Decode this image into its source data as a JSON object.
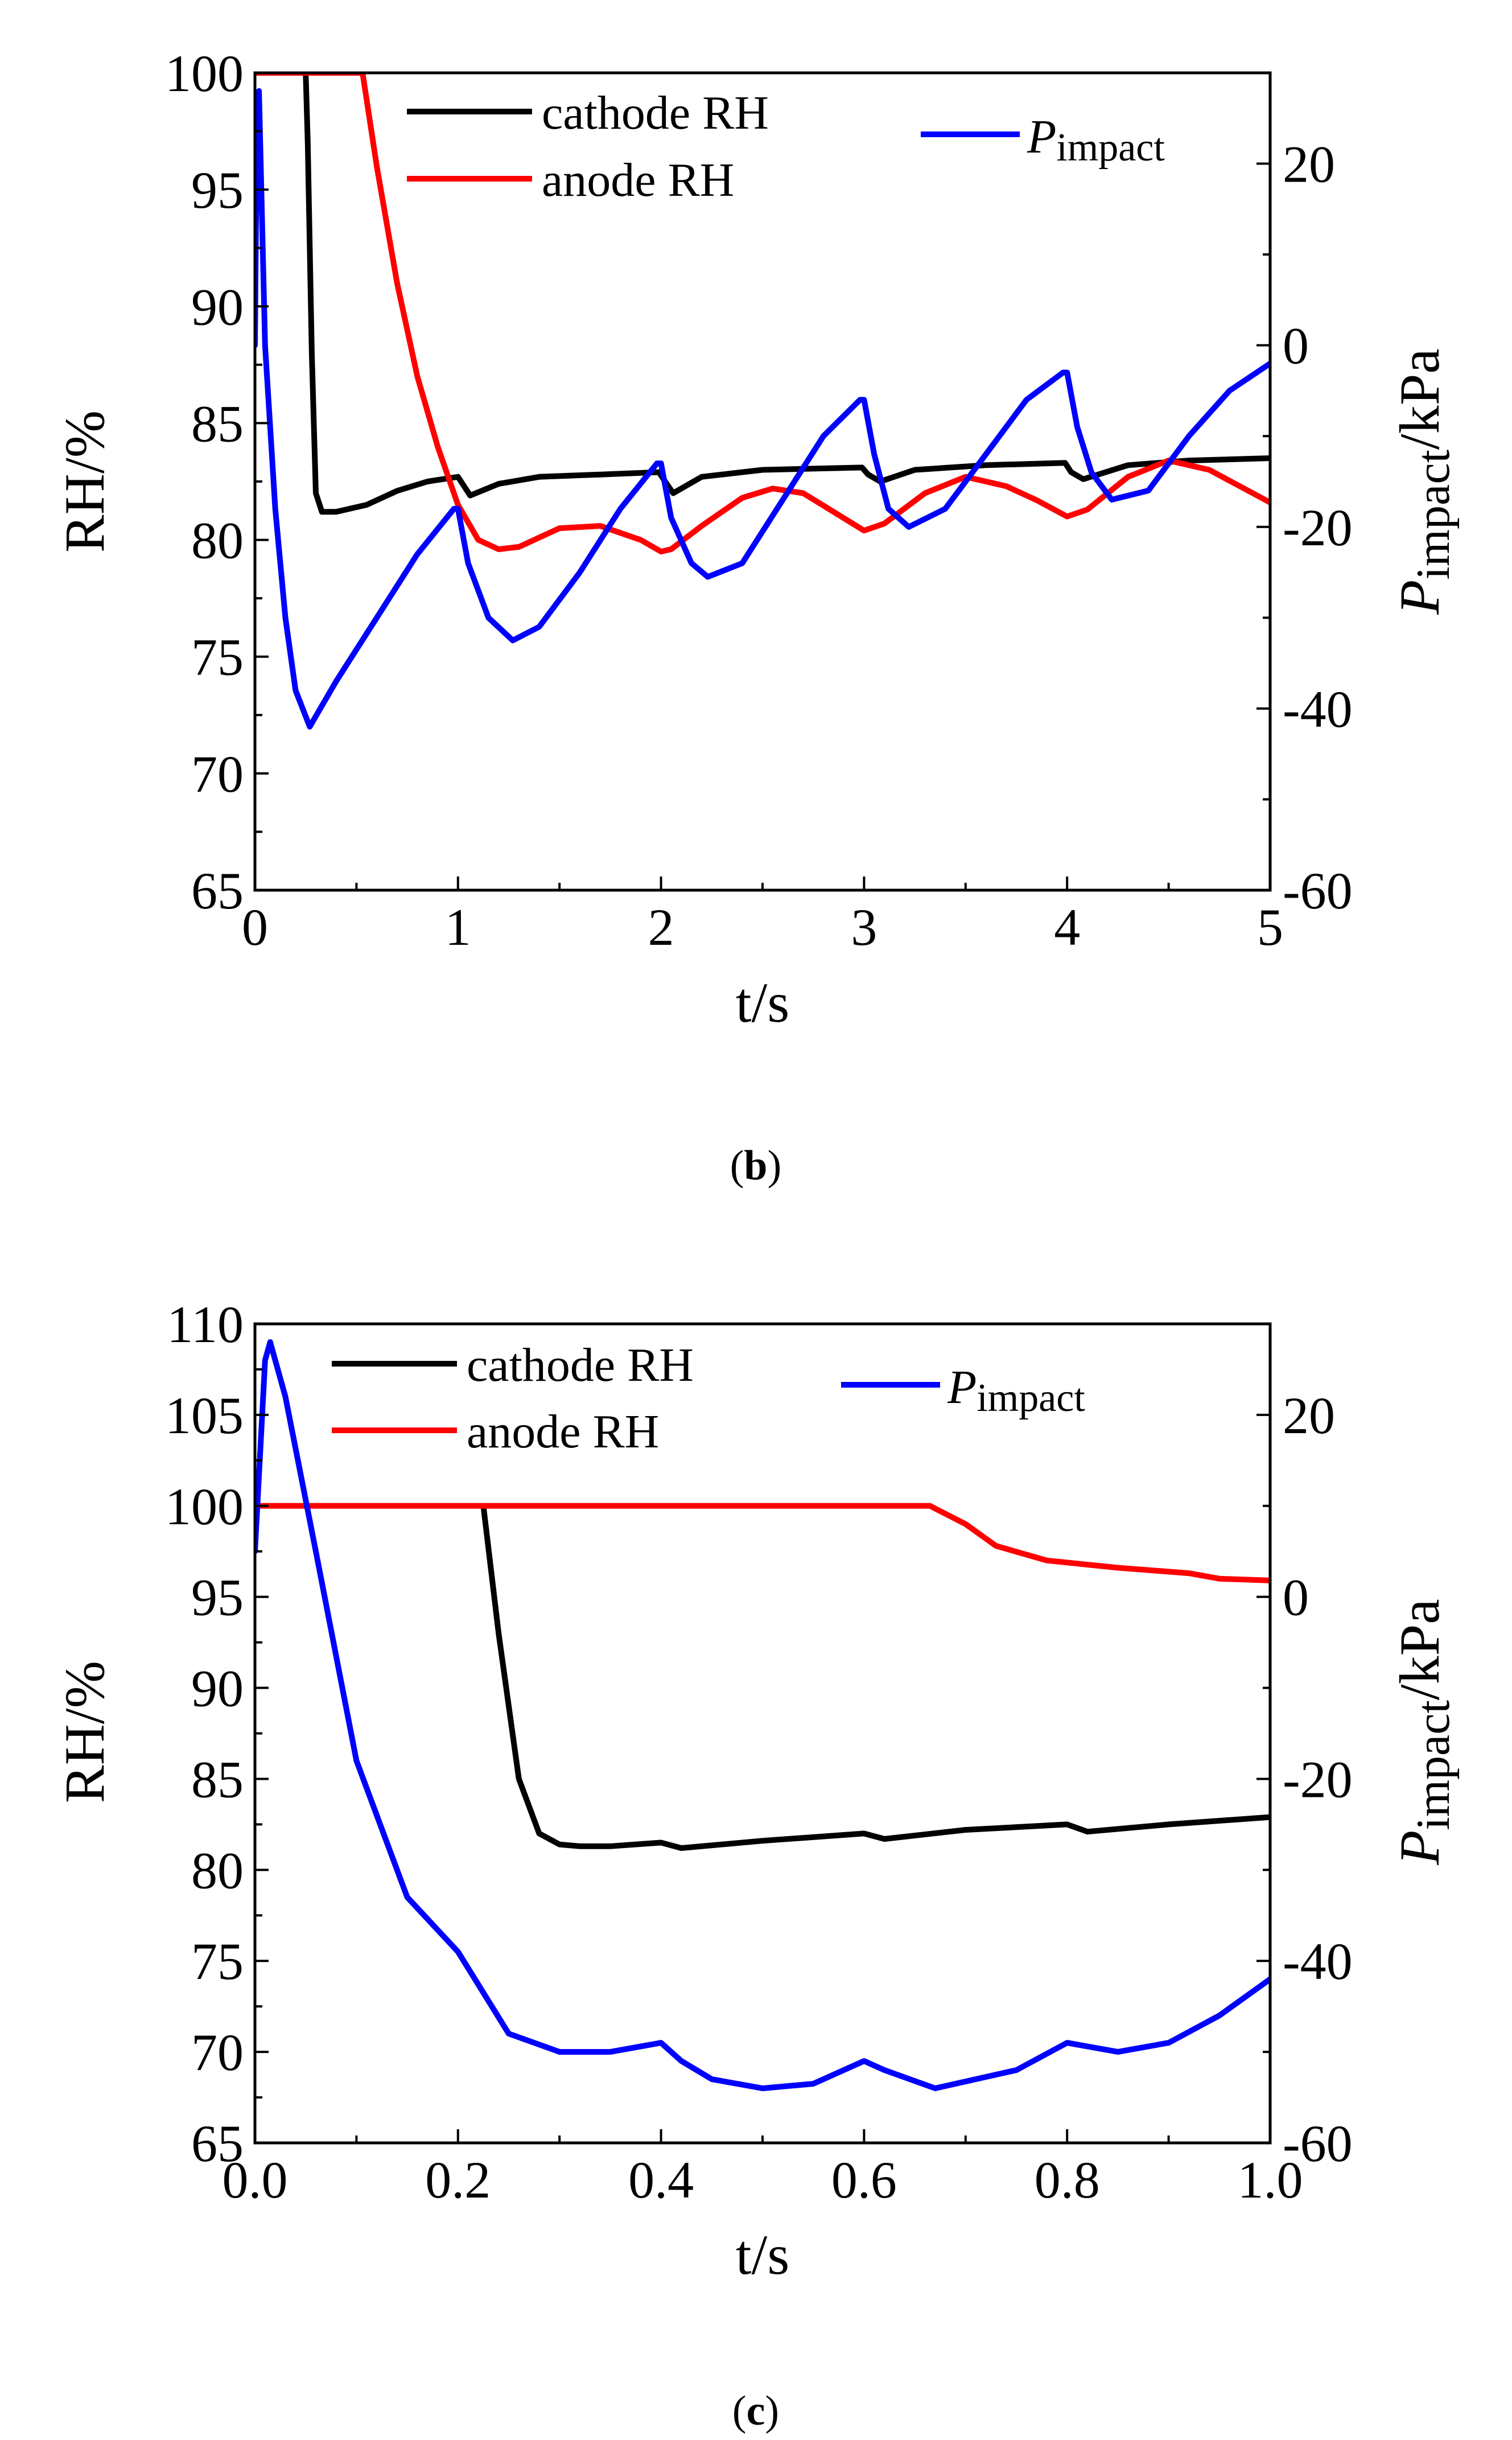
{
  "chart_data": [
    {
      "type": "line",
      "panel_label": "b",
      "xlabel": "t/s",
      "ylabel": "RH/%",
      "y2label_var": "P",
      "y2label_sub": "impact",
      "y2label_unit": "/kPa",
      "xlim": [
        0,
        5
      ],
      "ylim": [
        65,
        100
      ],
      "y2lim": [
        -60,
        30
      ],
      "xticks": [
        "0",
        "1",
        "2",
        "3",
        "4",
        "5"
      ],
      "yticks": [
        "65",
        "70",
        "75",
        "80",
        "85",
        "90",
        "95",
        "100"
      ],
      "y2ticks": [
        "-60",
        "-40",
        "-20",
        "0",
        "20"
      ],
      "legend": {
        "cathode": "cathode RH",
        "anode": "anode RH",
        "p_var": "P",
        "p_sub": "impact"
      },
      "series": [
        {
          "name": "cathode RH",
          "color": "#000000",
          "axis": "left",
          "x": [
            0.25,
            0.26,
            0.28,
            0.3,
            0.33,
            0.4,
            0.55,
            0.7,
            0.85,
            1.0,
            1.03,
            1.06,
            1.2,
            1.4,
            1.7,
            1.99,
            2.02,
            2.06,
            2.2,
            2.5,
            2.99,
            3.02,
            3.08,
            3.25,
            3.6,
            3.99,
            4.02,
            4.08,
            4.3,
            4.6,
            5.0
          ],
          "y": [
            100,
            97,
            88,
            82,
            81.2,
            81.2,
            81.5,
            82.1,
            82.5,
            82.7,
            82.3,
            81.9,
            82.4,
            82.7,
            82.8,
            82.9,
            82.5,
            82.0,
            82.7,
            83.0,
            83.1,
            82.8,
            82.5,
            83.0,
            83.2,
            83.3,
            82.9,
            82.6,
            83.2,
            83.4,
            83.5
          ]
        },
        {
          "name": "anode RH",
          "color": "#ff0000",
          "axis": "left",
          "x": [
            0,
            0.53,
            0.6,
            0.7,
            0.8,
            0.9,
            1.0,
            1.1,
            1.2,
            1.3,
            1.5,
            1.7,
            1.9,
            2.0,
            2.05,
            2.2,
            2.4,
            2.55,
            2.7,
            2.85,
            3.0,
            3.1,
            3.3,
            3.5,
            3.7,
            3.85,
            4.0,
            4.1,
            4.3,
            4.5,
            4.7,
            5.0
          ],
          "y": [
            100,
            100,
            96,
            91,
            87,
            84,
            81.5,
            80.0,
            79.6,
            79.7,
            80.5,
            80.6,
            80.0,
            79.5,
            79.6,
            80.6,
            81.8,
            82.2,
            82.0,
            81.2,
            80.4,
            80.7,
            82.0,
            82.7,
            82.3,
            81.7,
            81.0,
            81.3,
            82.7,
            83.4,
            83.0,
            81.6
          ]
        },
        {
          "name": "P_impact",
          "color": "#0000ff",
          "axis": "right",
          "x": [
            0,
            0.01,
            0.02,
            0.05,
            0.1,
            0.15,
            0.2,
            0.27,
            0.4,
            0.6,
            0.8,
            0.98,
            1.0,
            1.05,
            1.15,
            1.27,
            1.4,
            1.6,
            1.8,
            1.98,
            2.0,
            2.05,
            2.15,
            2.23,
            2.4,
            2.6,
            2.8,
            2.98,
            3.0,
            3.05,
            3.12,
            3.22,
            3.4,
            3.6,
            3.8,
            3.98,
            4.0,
            4.05,
            4.12,
            4.22,
            4.4,
            4.6,
            4.8,
            5.0
          ],
          "y": [
            0,
            26,
            28,
            0,
            -18,
            -30,
            -38,
            -42,
            -37,
            -30,
            -23,
            -18,
            -18,
            -24,
            -30,
            -32.5,
            -31,
            -25,
            -18,
            -13,
            -13,
            -19,
            -24,
            -25.5,
            -24,
            -17,
            -10,
            -6,
            -6,
            -12,
            -18,
            -20,
            -18,
            -12,
            -6,
            -3,
            -3,
            -9,
            -14,
            -17,
            -16,
            -10,
            -5,
            -2
          ]
        }
      ]
    },
    {
      "type": "line",
      "panel_label": "c",
      "xlabel": "t/s",
      "ylabel": "RH/%",
      "y2label_var": "P",
      "y2label_sub": "impact",
      "y2label_unit": "/kPa",
      "xlim": [
        0,
        1
      ],
      "ylim": [
        65,
        110
      ],
      "y2lim": [
        -60,
        30
      ],
      "xticks": [
        "0.0",
        "0.2",
        "0.4",
        "0.6",
        "0.8",
        "1.0"
      ],
      "yticks": [
        "65",
        "70",
        "75",
        "80",
        "85",
        "90",
        "95",
        "100",
        "105",
        "110"
      ],
      "y2ticks": [
        "-60",
        "-40",
        "-20",
        "0",
        "20"
      ],
      "legend": {
        "cathode": "cathode RH",
        "anode": "anode RH",
        "p_var": "P",
        "p_sub": "impact"
      },
      "series": [
        {
          "name": "cathode RH",
          "color": "#000000",
          "axis": "left",
          "x": [
            0.225,
            0.24,
            0.26,
            0.28,
            0.3,
            0.32,
            0.35,
            0.4,
            0.42,
            0.5,
            0.6,
            0.62,
            0.7,
            0.8,
            0.82,
            0.9,
            1.0
          ],
          "y": [
            100,
            93,
            85,
            82,
            81.4,
            81.3,
            81.3,
            81.5,
            81.2,
            81.6,
            82.0,
            81.7,
            82.2,
            82.5,
            82.1,
            82.5,
            82.9
          ]
        },
        {
          "name": "anode RH",
          "color": "#ff0000",
          "axis": "left",
          "x": [
            0,
            0.665,
            0.7,
            0.73,
            0.78,
            0.85,
            0.92,
            0.95,
            1.0
          ],
          "y": [
            100,
            100,
            99,
            97.8,
            97.0,
            96.6,
            96.3,
            96.0,
            95.9
          ]
        },
        {
          "name": "P_impact",
          "color": "#0000ff",
          "axis": "right",
          "x": [
            0,
            0.01,
            0.015,
            0.03,
            0.06,
            0.1,
            0.15,
            0.2,
            0.25,
            0.3,
            0.35,
            0.4,
            0.42,
            0.45,
            0.5,
            0.55,
            0.6,
            0.62,
            0.67,
            0.75,
            0.8,
            0.85,
            0.9,
            0.95,
            1.0
          ],
          "y": [
            5,
            26,
            28,
            22,
            5,
            -18,
            -33,
            -39,
            -48,
            -50,
            -50,
            -49,
            -51,
            -53,
            -54,
            -53.5,
            -51,
            -52,
            -54,
            -52,
            -49,
            -50,
            -49,
            -46,
            -42
          ]
        }
      ]
    }
  ]
}
